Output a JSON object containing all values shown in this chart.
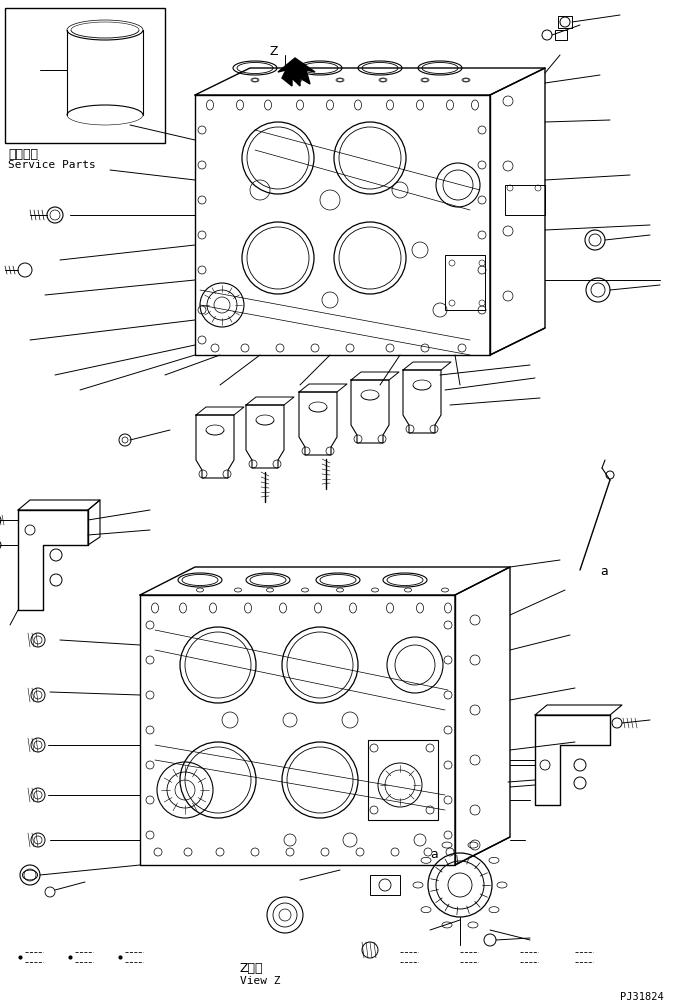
{
  "background_color": "#ffffff",
  "line_color": "#000000",
  "fig_width": 7.0,
  "fig_height": 10.02,
  "dpi": 100,
  "bottom_left_text1": "Z　視",
  "bottom_left_text2": "View Z",
  "bottom_right_text": "PJ31824",
  "service_parts_jp": "補給専用",
  "service_parts_en": "Service Parts"
}
